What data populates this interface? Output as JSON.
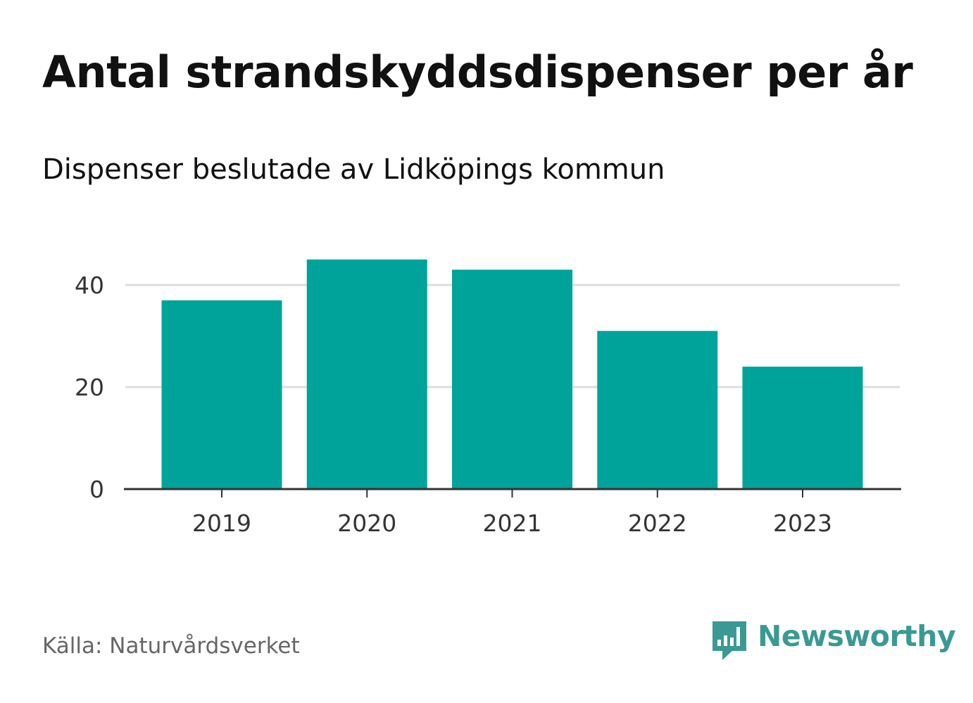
{
  "header": {
    "title": "Antal strandskyddsdispenser per år",
    "subtitle": "Dispenser beslutade av Lidköpings kommun"
  },
  "footer": {
    "source": "Källa: Naturvårdsverket",
    "brand": "Newsworthy",
    "brand_icon": "newsworthy-logo-icon"
  },
  "colors": {
    "bar": "#00a39a",
    "gridline": "#dddddd",
    "axis": "#333333",
    "brand": "#3a9a93"
  },
  "chart_data": {
    "type": "bar",
    "title": "Antal strandskyddsdispenser per år",
    "subtitle": "Dispenser beslutade av Lidköpings kommun",
    "categories": [
      "2019",
      "2020",
      "2021",
      "2022",
      "2023"
    ],
    "values": [
      37,
      45,
      43,
      31,
      24
    ],
    "xlabel": "",
    "ylabel": "",
    "ylim": [
      0,
      50
    ],
    "yticks": [
      0,
      20,
      40
    ],
    "grid": true,
    "legend": "none"
  }
}
